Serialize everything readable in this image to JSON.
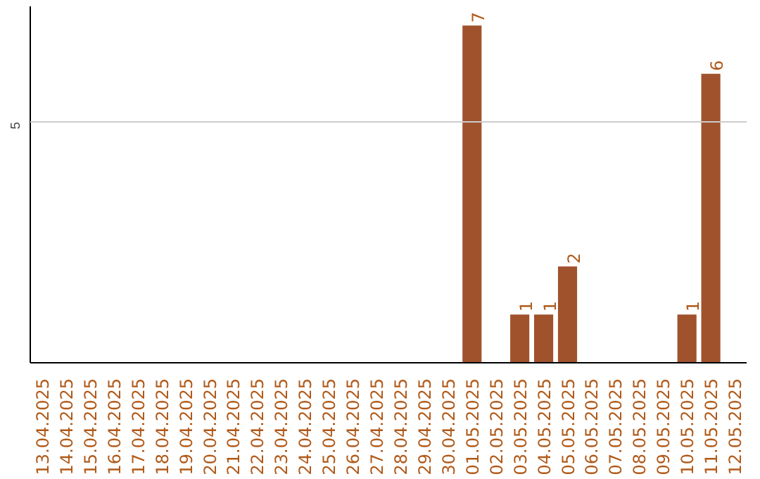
{
  "chart_data": {
    "type": "bar",
    "categories": [
      "13.04.2025",
      "14.04.2025",
      "15.04.2025",
      "16.04.2025",
      "17.04.2025",
      "18.04.2025",
      "19.04.2025",
      "20.04.2025",
      "21.04.2025",
      "22.04.2025",
      "23.04.2025",
      "24.04.2025",
      "25.04.2025",
      "26.04.2025",
      "27.04.2025",
      "28.04.2025",
      "29.04.2025",
      "30.04.2025",
      "01.05.2025",
      "02.05.2025",
      "03.05.2025",
      "04.05.2025",
      "05.05.2025",
      "06.05.2025",
      "07.05.2025",
      "08.05.2025",
      "09.05.2025",
      "10.05.2025",
      "11.05.2025",
      "12.05.2025"
    ],
    "values": [
      null,
      null,
      null,
      null,
      null,
      null,
      null,
      null,
      null,
      null,
      null,
      null,
      null,
      null,
      null,
      null,
      null,
      null,
      7,
      null,
      1,
      1,
      2,
      null,
      null,
      null,
      null,
      1,
      6,
      null
    ],
    "data_labels": true,
    "color": "#a0522d",
    "ylim": [
      0,
      7.4
    ],
    "ref_lines": [
      {
        "axis": "y",
        "value": 5,
        "label": "5",
        "color": "#cccccc"
      }
    ]
  }
}
